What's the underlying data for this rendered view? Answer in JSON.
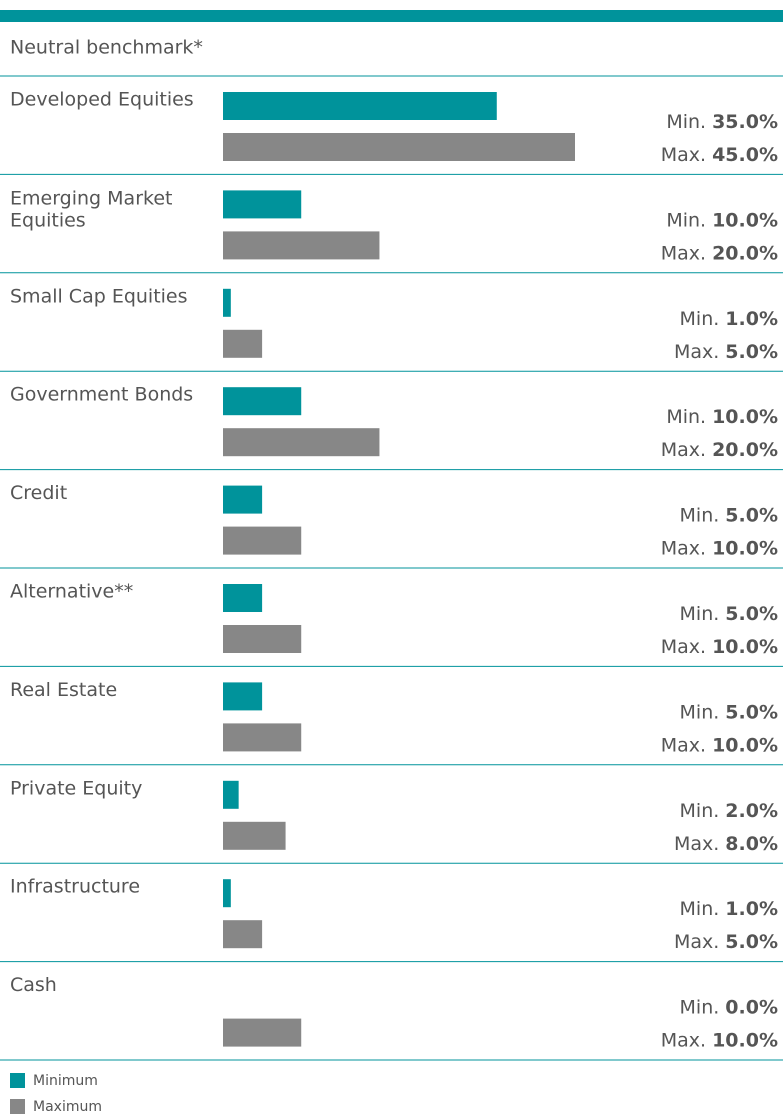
{
  "chart_data": {
    "type": "bar",
    "orientation": "horizontal",
    "title": "Neutral benchmark*",
    "categories": [
      "Developed Equities",
      "Emerging Market Equities",
      "Small Cap Equities",
      "Government Bonds",
      "Credit",
      "Alternative**",
      "Real Estate",
      "Private Equity",
      "Infrastructure",
      "Cash"
    ],
    "series": [
      {
        "name": "Minimum",
        "color": "#00939b",
        "label_prefix": "Min.",
        "values": [
          35,
          10,
          1,
          10,
          5,
          5,
          5,
          2,
          1,
          0
        ],
        "value_labels": [
          "35.0%",
          "10.0%",
          "1.0%",
          "10.0%",
          "5.0%",
          "5.0%",
          "5.0%",
          "2.0%",
          "1.0%",
          "0.0%"
        ]
      },
      {
        "name": "Maximum",
        "color": "#878787",
        "label_prefix": "Max.",
        "values": [
          45,
          20,
          5,
          20,
          10,
          10,
          10,
          8,
          5,
          10
        ],
        "value_labels": [
          "45.0%",
          "20.0%",
          "5.0%",
          "20.0%",
          "10.0%",
          "10.0%",
          "10.0%",
          "8.0%",
          "5.0%",
          "10.0%"
        ]
      }
    ],
    "xlim": [
      0,
      45
    ]
  }
}
